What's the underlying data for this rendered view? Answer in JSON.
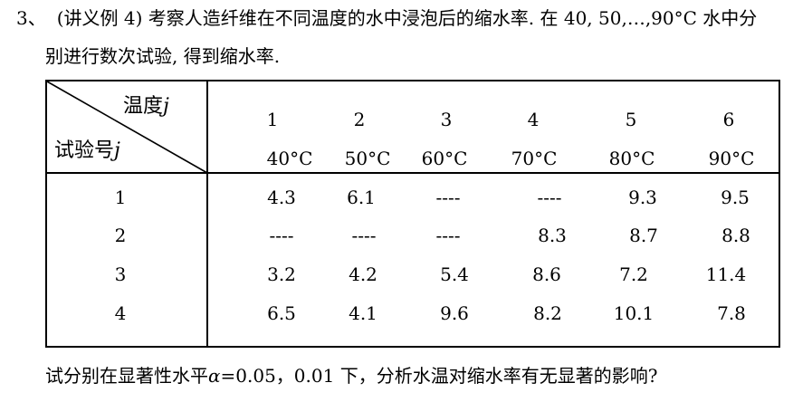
{
  "problem": {
    "number": "3、",
    "intro_line1": "(讲义例 4) 考察人造纤维在不同温度的水中浸泡后的缩水率. 在 40, 50,…,90°C 水中分",
    "intro_line2": "别进行数次试验, 得到缩水率.",
    "closing_prefix": "试分别在显著性水平",
    "closing_alpha": "α",
    "closing_suffix": "=0.05，0.01 下，分析水温对缩水率有无显著的影响?"
  },
  "table": {
    "corner_col_label": "温度",
    "corner_row_label": "试验号",
    "corner_var": "j",
    "levels": [
      "1",
      "2",
      "3",
      "4",
      "5",
      "6"
    ],
    "temperatures": [
      "40°C",
      "50°C",
      "60°C",
      "70°C",
      "80°C",
      "90°C"
    ],
    "rows": [
      {
        "id": "1",
        "cells": [
          "4.3",
          "6.1",
          "----",
          "----",
          "9.3",
          "9.5"
        ]
      },
      {
        "id": "2",
        "cells": [
          "----",
          "----",
          "----",
          "8.3",
          "8.7",
          "8.8"
        ]
      },
      {
        "id": "3",
        "cells": [
          "3.2",
          "4.2",
          "5.4",
          "8.6",
          "7.2",
          "11.4"
        ]
      },
      {
        "id": "4",
        "cells": [
          "6.5",
          "4.1",
          "9.6",
          "8.2",
          "10.1",
          "7.8"
        ]
      }
    ]
  }
}
